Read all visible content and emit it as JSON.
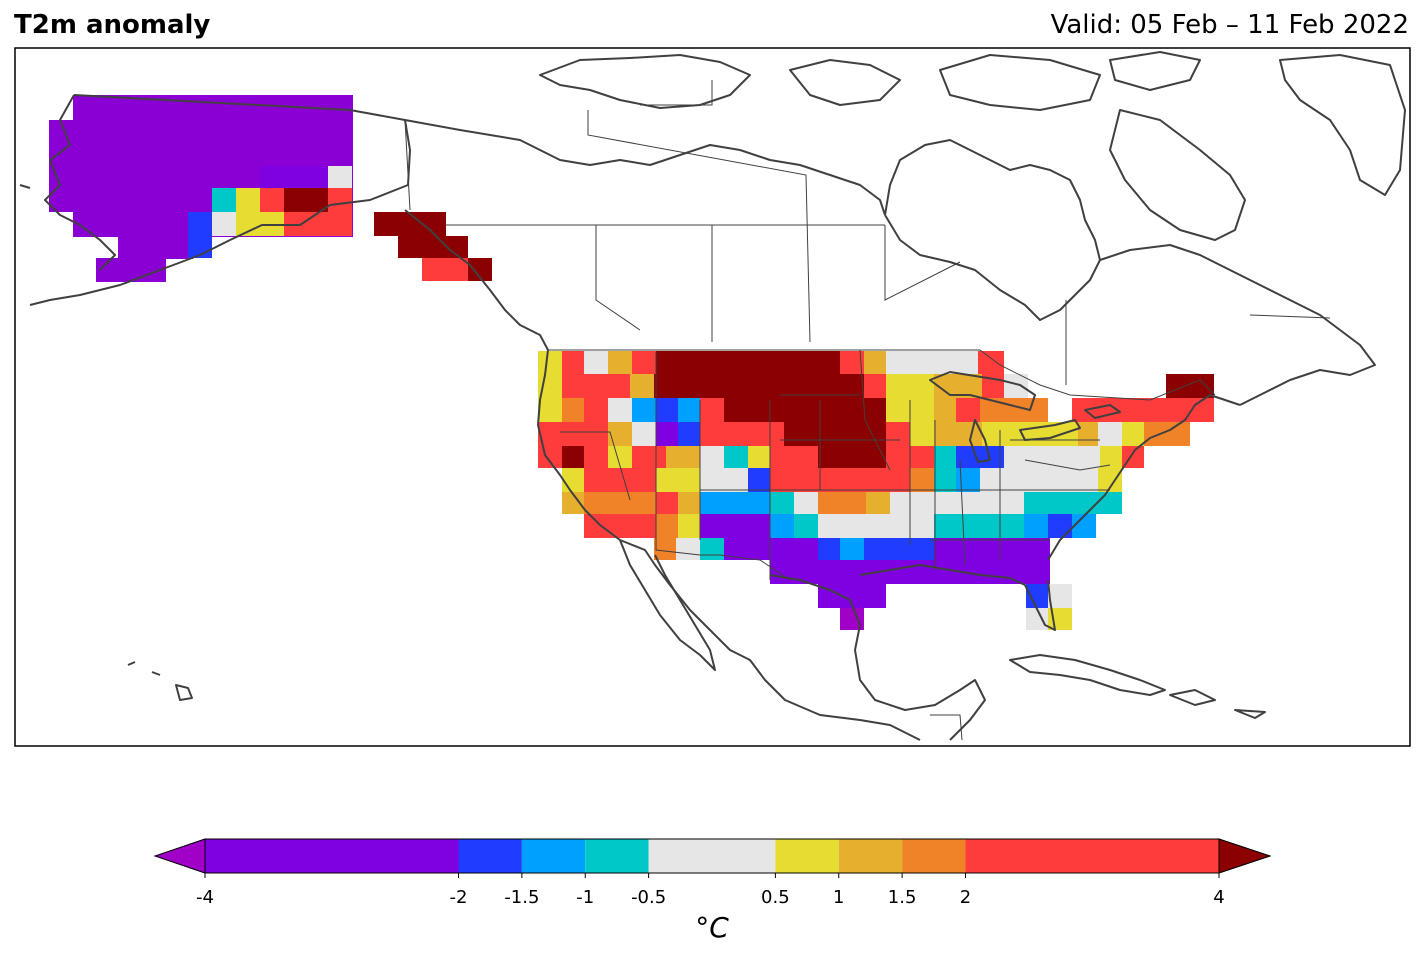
{
  "title": "T2m anomaly",
  "valid": "Valid: 05 Feb – 11 Feb 2022",
  "colorbar": {
    "unit_label": "°C",
    "ticks": [
      "-4",
      "-2",
      "-1.5",
      "-1",
      "-0.5",
      "0.5",
      "1",
      "1.5",
      "2",
      "4"
    ],
    "boundaries": [
      -4,
      -2,
      -1.5,
      -1,
      -0.5,
      0.5,
      1,
      1.5,
      2,
      4
    ],
    "colors": [
      "#7f00e0",
      "#203cff",
      "#00a0ff",
      "#00c8c8",
      "#e6e6e6",
      "#e6dc32",
      "#e6af2d",
      "#f08228",
      "#ff3c3c"
    ],
    "under_color": "#a000c8",
    "over_color": "#8b0000"
  },
  "map": {
    "region": "North America",
    "frame_color": "#000000",
    "coast_color": "#404040"
  }
}
